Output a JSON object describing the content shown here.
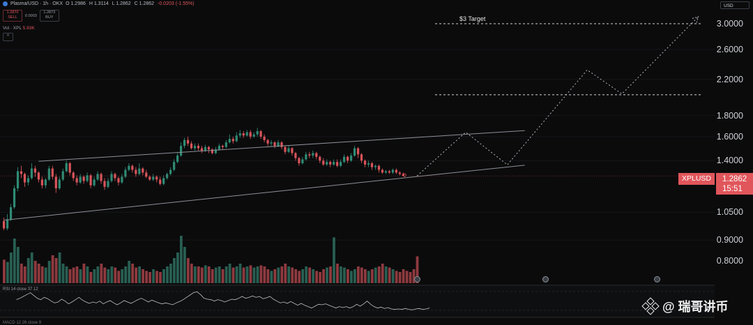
{
  "header": {
    "symbol": "Plasma/USD · 1h · OKX",
    "ohlc": {
      "o": "O 1.2986",
      "h": "H 1.3114",
      "l": "L 1.2862",
      "c": "C 1.2862",
      "chg": "-0.0203 (-1.55%)"
    },
    "sell_price": "1.2870",
    "sell_label": "SELL",
    "spread": "0.0003",
    "buy_price": "1.2873",
    "buy_label": "BUY"
  },
  "volume_label": "Vol · XPL",
  "volume_value": "5.93K",
  "currency": "USD",
  "axis_ticks": [
    {
      "label": "3.0000",
      "value": 3.0
    },
    {
      "label": "2.6000",
      "value": 2.6
    },
    {
      "label": "2.2000",
      "value": 2.2
    },
    {
      "label": "1.8000",
      "value": 1.8
    },
    {
      "label": "1.6000",
      "value": 1.6
    },
    {
      "label": "1.4000",
      "value": 1.4
    },
    {
      "label": "1.0500",
      "value": 1.05
    },
    {
      "label": "0.9000",
      "value": 0.9
    },
    {
      "label": "0.8000",
      "value": 0.8
    }
  ],
  "price_tag": {
    "symbol": "XPLUSD",
    "price": "1.2862",
    "countdown": "15:51"
  },
  "target_label": "$3 Target",
  "rsi_label": "RSI 14 close",
  "rsi_value": "37.12",
  "macd_label": "MACD 12 26 close 9",
  "watermark": "@ 瑞哥讲币",
  "colors": {
    "up": "#2e8b74",
    "down": "#d9545a",
    "bg": "#0b0b0c"
  },
  "chart_data": {
    "type": "candlestick",
    "symbol": "XPLUSD",
    "scale": "log",
    "ylim": [
      0.76,
      3.2
    ],
    "candles": [
      [
        1.0,
        0.96,
        0.95,
        1.02
      ],
      [
        0.96,
        1.01,
        0.95,
        1.04
      ],
      [
        1.01,
        1.08,
        1.0,
        1.1
      ],
      [
        1.08,
        1.2,
        1.07,
        1.22
      ],
      [
        1.2,
        1.32,
        1.18,
        1.35
      ],
      [
        1.32,
        1.3,
        1.27,
        1.36
      ],
      [
        1.3,
        1.24,
        1.21,
        1.31
      ],
      [
        1.24,
        1.27,
        1.22,
        1.29
      ],
      [
        1.27,
        1.34,
        1.26,
        1.38
      ],
      [
        1.34,
        1.31,
        1.28,
        1.36
      ],
      [
        1.31,
        1.26,
        1.24,
        1.32
      ],
      [
        1.26,
        1.22,
        1.2,
        1.28
      ],
      [
        1.22,
        1.26,
        1.2,
        1.27
      ],
      [
        1.26,
        1.34,
        1.25,
        1.36
      ],
      [
        1.34,
        1.28,
        1.26,
        1.36
      ],
      [
        1.28,
        1.2,
        1.17,
        1.3
      ],
      [
        1.2,
        1.26,
        1.19,
        1.28
      ],
      [
        1.26,
        1.32,
        1.25,
        1.34
      ],
      [
        1.32,
        1.38,
        1.31,
        1.4
      ],
      [
        1.38,
        1.31,
        1.29,
        1.39
      ],
      [
        1.31,
        1.27,
        1.25,
        1.32
      ],
      [
        1.27,
        1.24,
        1.22,
        1.29
      ],
      [
        1.24,
        1.28,
        1.23,
        1.3
      ],
      [
        1.28,
        1.25,
        1.23,
        1.29
      ],
      [
        1.25,
        1.29,
        1.24,
        1.31
      ],
      [
        1.29,
        1.22,
        1.2,
        1.3
      ],
      [
        1.22,
        1.26,
        1.21,
        1.28
      ],
      [
        1.26,
        1.3,
        1.25,
        1.32
      ],
      [
        1.3,
        1.25,
        1.23,
        1.31
      ],
      [
        1.25,
        1.21,
        1.19,
        1.27
      ],
      [
        1.21,
        1.25,
        1.2,
        1.27
      ],
      [
        1.25,
        1.3,
        1.24,
        1.32
      ],
      [
        1.3,
        1.27,
        1.25,
        1.31
      ],
      [
        1.27,
        1.24,
        1.22,
        1.28
      ],
      [
        1.24,
        1.28,
        1.23,
        1.3
      ],
      [
        1.28,
        1.33,
        1.27,
        1.35
      ],
      [
        1.33,
        1.36,
        1.32,
        1.38
      ],
      [
        1.36,
        1.33,
        1.31,
        1.37
      ],
      [
        1.33,
        1.3,
        1.28,
        1.35
      ],
      [
        1.3,
        1.34,
        1.29,
        1.38
      ],
      [
        1.34,
        1.31,
        1.29,
        1.35
      ],
      [
        1.31,
        1.28,
        1.27,
        1.33
      ],
      [
        1.28,
        1.26,
        1.25,
        1.29
      ],
      [
        1.26,
        1.28,
        1.25,
        1.3
      ],
      [
        1.28,
        1.26,
        1.24,
        1.29
      ],
      [
        1.26,
        1.23,
        1.22,
        1.28
      ],
      [
        1.23,
        1.27,
        1.22,
        1.29
      ],
      [
        1.27,
        1.3,
        1.26,
        1.31
      ],
      [
        1.3,
        1.33,
        1.29,
        1.35
      ],
      [
        1.33,
        1.39,
        1.32,
        1.41
      ],
      [
        1.39,
        1.44,
        1.38,
        1.46
      ],
      [
        1.44,
        1.52,
        1.43,
        1.55
      ],
      [
        1.52,
        1.57,
        1.5,
        1.59
      ],
      [
        1.57,
        1.54,
        1.52,
        1.6
      ],
      [
        1.54,
        1.5,
        1.49,
        1.56
      ],
      [
        1.5,
        1.52,
        1.48,
        1.54
      ],
      [
        1.52,
        1.5,
        1.48,
        1.54
      ],
      [
        1.5,
        1.48,
        1.46,
        1.52
      ],
      [
        1.48,
        1.51,
        1.47,
        1.53
      ],
      [
        1.51,
        1.49,
        1.46,
        1.52
      ],
      [
        1.49,
        1.46,
        1.45,
        1.5
      ],
      [
        1.46,
        1.49,
        1.45,
        1.51
      ],
      [
        1.49,
        1.52,
        1.48,
        1.54
      ],
      [
        1.52,
        1.51,
        1.49,
        1.53
      ],
      [
        1.51,
        1.55,
        1.5,
        1.57
      ],
      [
        1.55,
        1.58,
        1.54,
        1.62
      ],
      [
        1.58,
        1.56,
        1.54,
        1.6
      ],
      [
        1.56,
        1.61,
        1.55,
        1.64
      ],
      [
        1.61,
        1.63,
        1.59,
        1.66
      ],
      [
        1.63,
        1.61,
        1.59,
        1.65
      ],
      [
        1.61,
        1.64,
        1.6,
        1.66
      ],
      [
        1.64,
        1.6,
        1.58,
        1.66
      ],
      [
        1.6,
        1.62,
        1.59,
        1.64
      ],
      [
        1.62,
        1.65,
        1.6,
        1.68
      ],
      [
        1.65,
        1.6,
        1.58,
        1.66
      ],
      [
        1.6,
        1.57,
        1.55,
        1.62
      ],
      [
        1.57,
        1.54,
        1.52,
        1.58
      ],
      [
        1.54,
        1.55,
        1.52,
        1.57
      ],
      [
        1.55,
        1.52,
        1.5,
        1.56
      ],
      [
        1.52,
        1.55,
        1.51,
        1.57
      ],
      [
        1.55,
        1.51,
        1.49,
        1.56
      ],
      [
        1.51,
        1.47,
        1.45,
        1.52
      ],
      [
        1.47,
        1.5,
        1.46,
        1.52
      ],
      [
        1.5,
        1.46,
        1.44,
        1.51
      ],
      [
        1.46,
        1.42,
        1.4,
        1.47
      ],
      [
        1.42,
        1.38,
        1.36,
        1.43
      ],
      [
        1.38,
        1.41,
        1.37,
        1.43
      ],
      [
        1.41,
        1.45,
        1.4,
        1.47
      ],
      [
        1.45,
        1.44,
        1.42,
        1.47
      ],
      [
        1.44,
        1.46,
        1.42,
        1.48
      ],
      [
        1.46,
        1.43,
        1.41,
        1.47
      ],
      [
        1.43,
        1.4,
        1.38,
        1.44
      ],
      [
        1.4,
        1.37,
        1.36,
        1.42
      ],
      [
        1.37,
        1.39,
        1.36,
        1.41
      ],
      [
        1.39,
        1.37,
        1.35,
        1.4
      ],
      [
        1.37,
        1.39,
        1.36,
        1.41
      ],
      [
        1.39,
        1.36,
        1.35,
        1.41
      ],
      [
        1.36,
        1.39,
        1.35,
        1.41
      ],
      [
        1.39,
        1.43,
        1.38,
        1.45
      ],
      [
        1.43,
        1.4,
        1.38,
        1.44
      ],
      [
        1.4,
        1.44,
        1.39,
        1.46
      ],
      [
        1.44,
        1.5,
        1.43,
        1.52
      ],
      [
        1.5,
        1.45,
        1.42,
        1.51
      ],
      [
        1.45,
        1.4,
        1.38,
        1.46
      ],
      [
        1.4,
        1.37,
        1.35,
        1.41
      ],
      [
        1.37,
        1.38,
        1.35,
        1.4
      ],
      [
        1.38,
        1.35,
        1.33,
        1.39
      ],
      [
        1.35,
        1.36,
        1.33,
        1.37
      ],
      [
        1.36,
        1.33,
        1.31,
        1.37
      ],
      [
        1.33,
        1.31,
        1.3,
        1.34
      ],
      [
        1.31,
        1.32,
        1.3,
        1.33
      ],
      [
        1.32,
        1.31,
        1.3,
        1.33
      ],
      [
        1.31,
        1.33,
        1.3,
        1.34
      ],
      [
        1.33,
        1.31,
        1.3,
        1.34
      ],
      [
        1.31,
        1.3,
        1.29,
        1.32
      ],
      [
        1.3,
        1.2862,
        1.2862,
        1.311
      ]
    ],
    "volumes": [
      0.42,
      0.38,
      0.55,
      0.8,
      0.65,
      0.35,
      0.3,
      0.45,
      0.55,
      0.4,
      0.35,
      0.3,
      0.28,
      0.4,
      0.5,
      0.45,
      0.55,
      0.35,
      0.3,
      0.25,
      0.28,
      0.3,
      0.25,
      0.35,
      0.3,
      0.2,
      0.25,
      0.3,
      0.35,
      0.28,
      0.25,
      0.3,
      0.28,
      0.22,
      0.25,
      0.3,
      0.4,
      0.35,
      0.28,
      0.3,
      0.25,
      0.22,
      0.2,
      0.25,
      0.22,
      0.2,
      0.25,
      0.3,
      0.35,
      0.45,
      0.55,
      0.85,
      0.65,
      0.45,
      0.35,
      0.3,
      0.3,
      0.28,
      0.32,
      0.3,
      0.25,
      0.28,
      0.3,
      0.25,
      0.3,
      0.35,
      0.28,
      0.3,
      0.35,
      0.28,
      0.3,
      0.32,
      0.28,
      0.3,
      0.32,
      0.3,
      0.25,
      0.22,
      0.25,
      0.28,
      0.3,
      0.35,
      0.3,
      0.28,
      0.25,
      0.22,
      0.25,
      0.3,
      0.28,
      0.25,
      0.22,
      0.2,
      0.25,
      0.28,
      0.3,
      0.82,
      0.35,
      0.3,
      0.28,
      0.25,
      0.22,
      0.25,
      0.3,
      0.28,
      0.25,
      0.22,
      0.25,
      0.28,
      0.3,
      0.35,
      0.3,
      0.28,
      0.25,
      0.22,
      0.2,
      0.25,
      0.22,
      0.2,
      0.25,
      0.48
    ],
    "channel": {
      "upper": [
        {
          "i": 10,
          "price": 1.395
        },
        {
          "i": 150,
          "price": 1.655
        }
      ],
      "lower": [
        {
          "i": 0,
          "price": 1.005
        },
        {
          "i": 150,
          "price": 1.365
        }
      ]
    },
    "projection": [
      {
        "i": 119,
        "price": 1.2862
      },
      {
        "i": 133,
        "price": 1.64
      },
      {
        "i": 145,
        "price": 1.368
      },
      {
        "i": 168,
        "price": 2.32
      },
      {
        "i": 178,
        "price": 2.03
      },
      {
        "i": 200,
        "price": 3.12
      }
    ],
    "horizontal_levels": [
      {
        "price": 3.0,
        "label": "$3 Target"
      },
      {
        "price": 2.02
      }
    ],
    "rsi": [
      55,
      58,
      62,
      66,
      70,
      64,
      58,
      55,
      60,
      57,
      52,
      48,
      50,
      56,
      52,
      46,
      50,
      55,
      60,
      54,
      50,
      47,
      50,
      48,
      52,
      46,
      50,
      53,
      48,
      44,
      48,
      53,
      50,
      47,
      51,
      55,
      58,
      54,
      50,
      54,
      51,
      48,
      46,
      48,
      46,
      44,
      48,
      51,
      55,
      60,
      65,
      70,
      72,
      66,
      58,
      56,
      55,
      52,
      55,
      53,
      50,
      53,
      56,
      55,
      58,
      62,
      58,
      60,
      63,
      60,
      62,
      57,
      59,
      62,
      56,
      52,
      48,
      50,
      47,
      51,
      47,
      43,
      47,
      43,
      40,
      37,
      41,
      45,
      44,
      46,
      43,
      40,
      37,
      40,
      38,
      40,
      37,
      40,
      45,
      41,
      46,
      52,
      45,
      40,
      37,
      39,
      36,
      38,
      35,
      34,
      35,
      34,
      36,
      34,
      33,
      35,
      36,
      34,
      35,
      37.12
    ]
  }
}
